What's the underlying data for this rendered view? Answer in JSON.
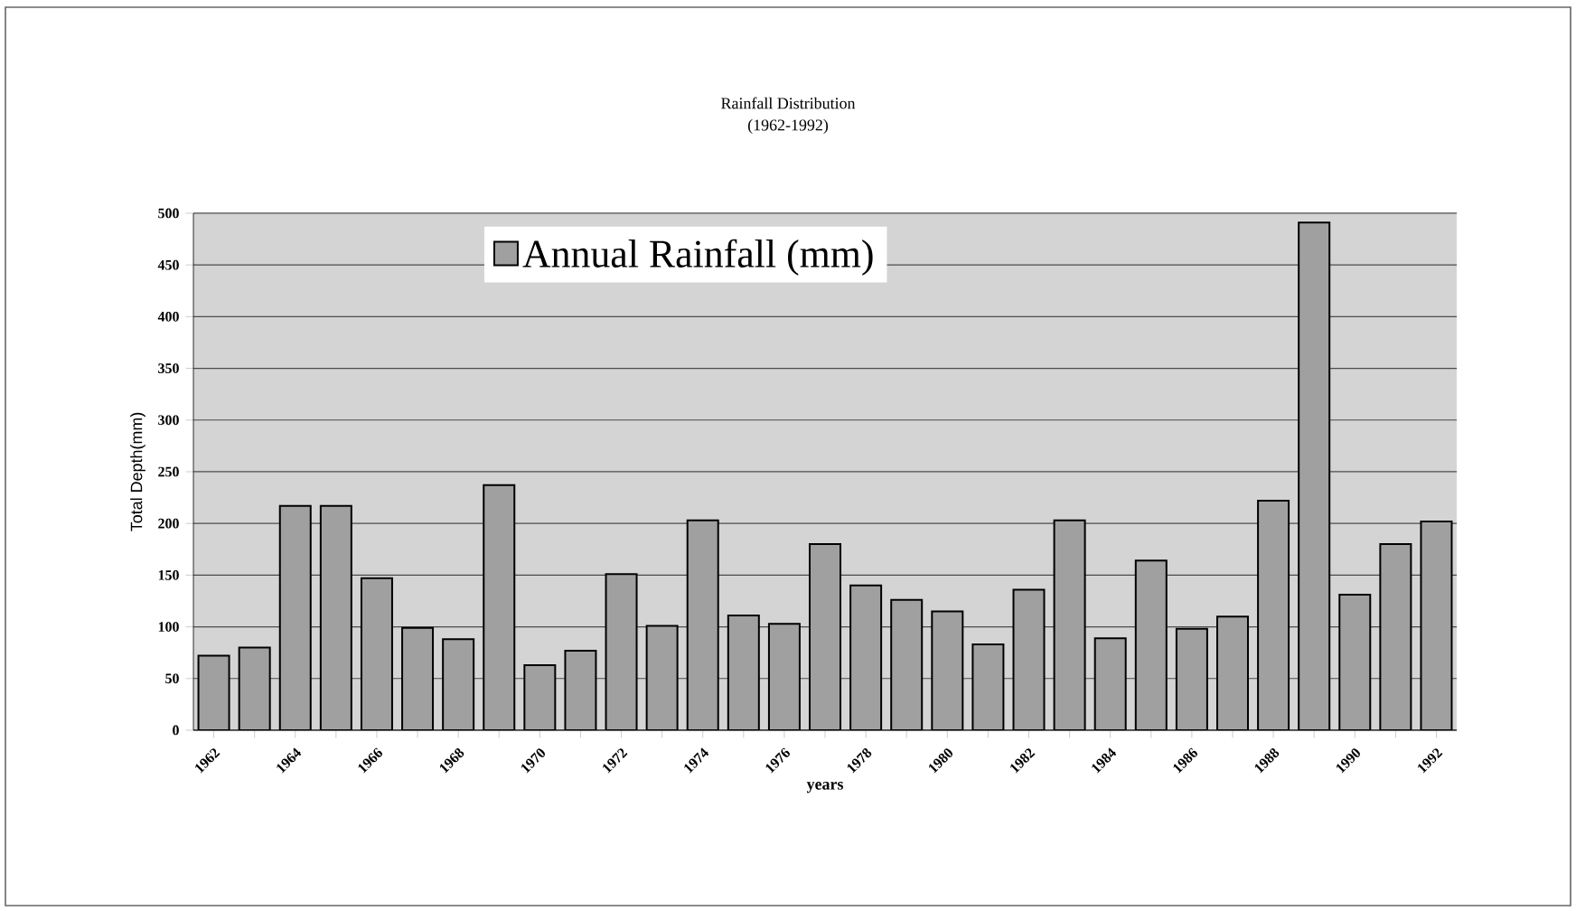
{
  "chart_data": {
    "type": "bar",
    "title": "Rainfall Distribution",
    "subtitle": "(1962-1992)",
    "xlabel": "years",
    "ylabel": "Total Depth(mm)",
    "categories": [
      "1962",
      null,
      "1964",
      null,
      "1966",
      null,
      "1968",
      null,
      "1970",
      null,
      "1972",
      null,
      "1974",
      null,
      "1976",
      null,
      "1978",
      null,
      "1980",
      null,
      "1982",
      null,
      "1984",
      null,
      "1986",
      null,
      "1988",
      null,
      "1990",
      null,
      "1992"
    ],
    "series": [
      {
        "name": "Annual Rainfall (mm)",
        "color": "#a0a0a0",
        "values": [
          72,
          80,
          217,
          217,
          147,
          99,
          88,
          237,
          63,
          77,
          151,
          101,
          203,
          111,
          103,
          180,
          140,
          126,
          115,
          83,
          136,
          203,
          89,
          164,
          98,
          110,
          222,
          491,
          131,
          180,
          202
        ]
      }
    ],
    "ylim": [
      0,
      500
    ],
    "yticks": [
      0,
      50,
      100,
      150,
      200,
      250,
      300,
      350,
      400,
      450,
      500
    ],
    "grid": "y",
    "legend": "top"
  }
}
